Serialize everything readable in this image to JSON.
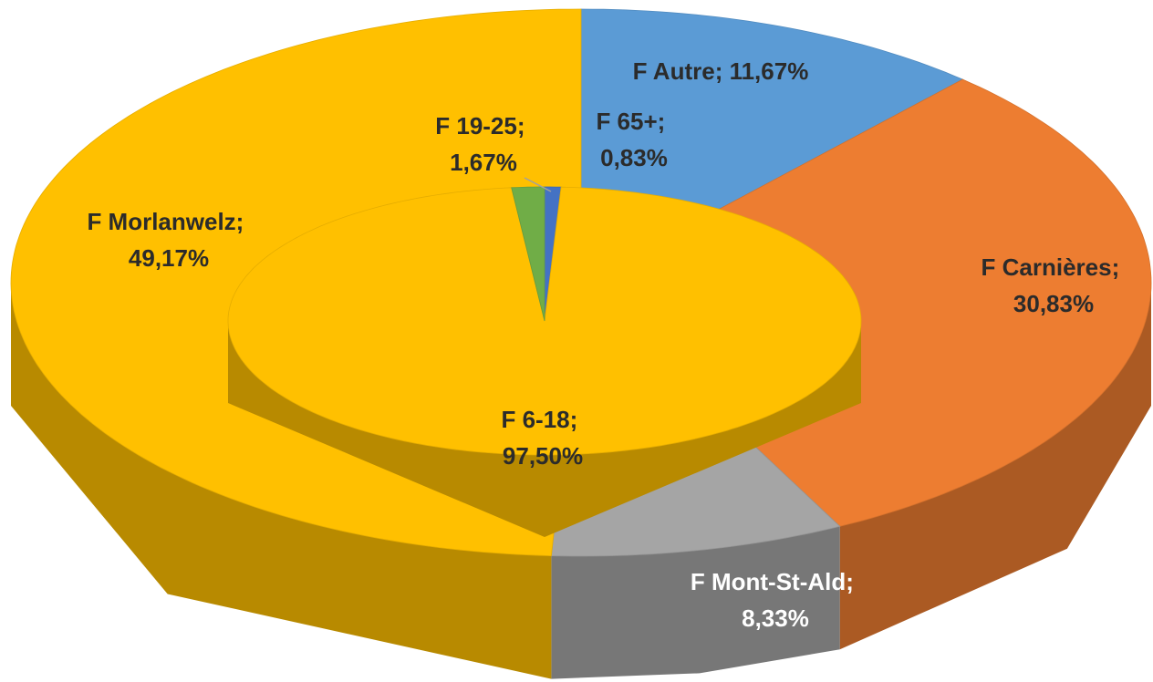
{
  "chart_data": [
    {
      "type": "pie",
      "values": [
        11.67,
        30.83,
        8.33,
        49.17
      ],
      "value_labels": [
        "F Autre; 11,67%",
        "F Carnières; 30,83%",
        "F Mont-St-Ald; 8,33%",
        "F Morlanwelz; 49,17%"
      ],
      "colors": [
        "#5b9bd5",
        "#ed7d31",
        "#a5a5a5",
        "#ffc000"
      ]
    },
    {
      "type": "pie",
      "values": [
        0.83,
        97.5,
        1.67
      ],
      "value_labels": [
        "F 65+; 0,83%",
        "F 6-18; 97,50%",
        "F 19-25; 1,67%"
      ],
      "colors": [
        "#4472c4",
        "#ffc000",
        "#70ad47"
      ]
    }
  ]
}
